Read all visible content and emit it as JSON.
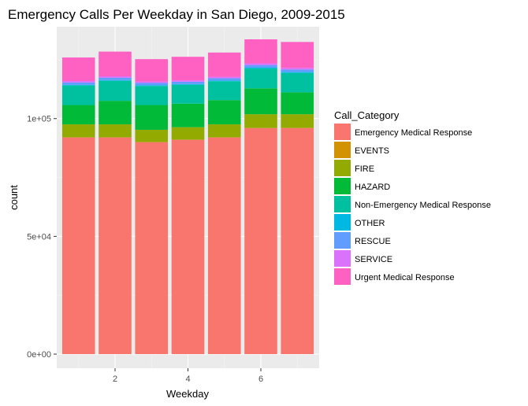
{
  "chart_data": {
    "type": "bar",
    "stacked": true,
    "title": "Emergency Calls Per Weekday in San Diego, 2009-2015",
    "xlabel": "Weekday",
    "ylabel": "count",
    "categories": [
      1,
      2,
      3,
      4,
      5,
      6,
      7
    ],
    "x_ticks": [
      "2",
      "4",
      "6"
    ],
    "x_tick_values": [
      2,
      4,
      6
    ],
    "y_ticks": [
      "0e+00",
      "5e+04",
      "1e+05"
    ],
    "y_tick_values": [
      0,
      50000,
      100000
    ],
    "ylim": [
      -6000,
      139000
    ],
    "xlim": [
      0.4,
      7.6
    ],
    "grid": true,
    "legend_title": "Call_Category",
    "legend_position": "right",
    "series": [
      {
        "name": "Emergency Medical Response",
        "color": "#F8766D",
        "values": [
          92000,
          92000,
          90000,
          91000,
          92000,
          96000,
          96000
        ]
      },
      {
        "name": "EVENTS",
        "color": "#D39200",
        "values": [
          50,
          50,
          50,
          50,
          50,
          50,
          50
        ]
      },
      {
        "name": "FIRE",
        "color": "#93AA00",
        "values": [
          5500,
          5500,
          5200,
          5300,
          5500,
          5800,
          5800
        ]
      },
      {
        "name": "HAZARD",
        "color": "#00BA38",
        "values": [
          8200,
          10000,
          10500,
          10000,
          10300,
          11000,
          9300
        ]
      },
      {
        "name": "Non-Emergency Medical Response",
        "color": "#00C19F",
        "values": [
          8300,
          8500,
          8100,
          8000,
          8000,
          8400,
          8200
        ]
      },
      {
        "name": "OTHER",
        "color": "#00B9E3",
        "values": [
          300,
          300,
          300,
          300,
          300,
          400,
          400
        ]
      },
      {
        "name": "RESCUE",
        "color": "#619CFF",
        "values": [
          1000,
          1000,
          1000,
          1000,
          1000,
          1100,
          1100
        ]
      },
      {
        "name": "SERVICE",
        "color": "#DB72FB",
        "values": [
          600,
          600,
          600,
          600,
          600,
          700,
          700
        ]
      },
      {
        "name": "Urgent Medical Response",
        "color": "#FF61C3",
        "values": [
          10000,
          10500,
          9500,
          10000,
          10300,
          10200,
          11000
        ]
      }
    ]
  }
}
